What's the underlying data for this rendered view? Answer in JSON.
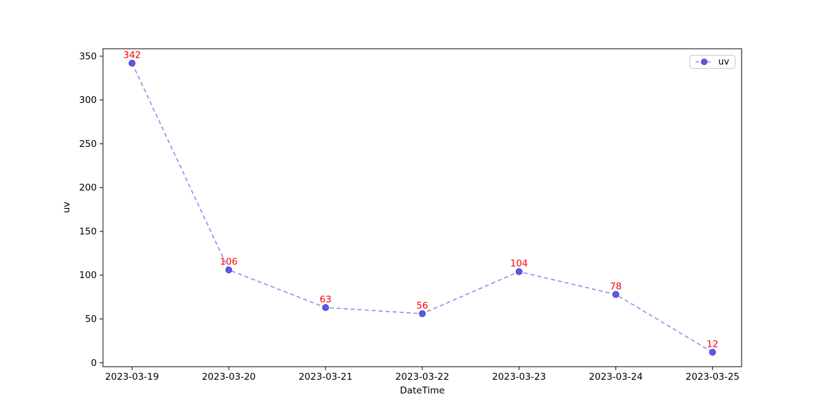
{
  "chart_data": {
    "type": "line",
    "title": "",
    "xlabel": "DateTime",
    "ylabel": "uv",
    "categories": [
      "2023-03-19",
      "2023-03-20",
      "2023-03-21",
      "2023-03-22",
      "2023-03-23",
      "2023-03-24",
      "2023-03-25"
    ],
    "series": [
      {
        "name": "uv",
        "values": [
          342,
          106,
          63,
          56,
          104,
          78,
          12
        ]
      }
    ],
    "point_labels": [
      "342",
      "106",
      "63",
      "56",
      "104",
      "78",
      "12"
    ],
    "yticks": [
      0,
      50,
      100,
      150,
      200,
      250,
      300,
      350
    ],
    "ylim": [
      -4.5,
      358.5
    ],
    "xlim": [
      -0.3,
      6.3
    ],
    "grid": false,
    "line_style": "dashed",
    "marker": "circle",
    "legend": {
      "label": "uv",
      "position": "upper-right"
    },
    "colors": {
      "line": "#8c8cee",
      "marker_fill": "#5b5be0",
      "marker_edge": "#4545cf",
      "point_label": "#ff0000",
      "axis": "#000000",
      "legend_border": "#c9c9c9",
      "background": "#ffffff"
    }
  }
}
